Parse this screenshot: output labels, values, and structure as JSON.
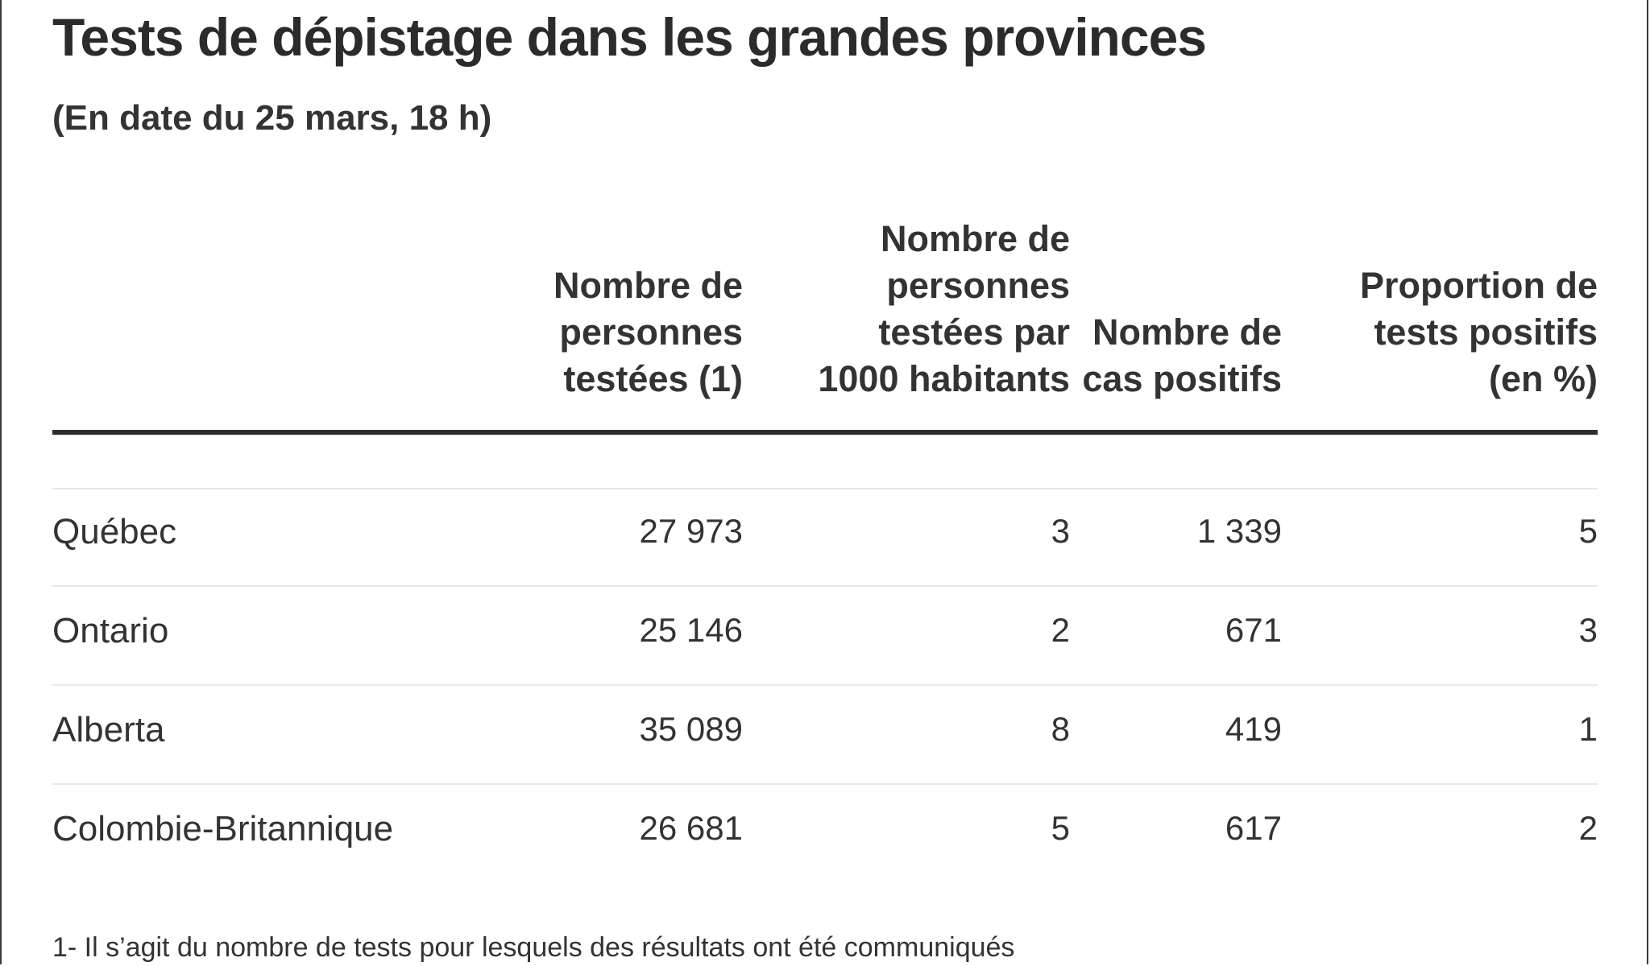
{
  "title": "Tests de dépistage dans les grandes provinces",
  "subtitle": "(En date du 25 mars, 18 h)",
  "columns": [
    {
      "lines": [
        "Nombre de",
        "personnes",
        "testées (1)"
      ]
    },
    {
      "lines": [
        "Nombre de",
        "personnes",
        "testées par",
        "1000 habitants"
      ]
    },
    {
      "lines": [
        "Nombre de",
        "cas positifs"
      ]
    },
    {
      "lines": [
        "Proportion de",
        "tests positifs",
        "(en %)"
      ]
    }
  ],
  "footnote": "1- Il s’agit du nombre de tests pour lesquels des résultats ont été communiqués",
  "chart_data": {
    "type": "table",
    "title": "Tests de dépistage dans les grandes provinces",
    "subtitle": "(En date du 25 mars, 18 h)",
    "headers": [
      "",
      "Nombre de personnes testées (1)",
      "Nombre de personnes testées par 1000 habitants",
      "Nombre de cas positifs",
      "Proportion de tests positifs (en %)"
    ],
    "rows": [
      {
        "province": "Québec",
        "tested": "27 973",
        "per_1000": "3",
        "positive": "1 339",
        "pct_positive": "5"
      },
      {
        "province": "Ontario",
        "tested": "25 146",
        "per_1000": "2",
        "positive": "671",
        "pct_positive": "3"
      },
      {
        "province": "Alberta",
        "tested": "35 089",
        "per_1000": "8",
        "positive": "419",
        "pct_positive": "1"
      },
      {
        "province": "Colombie-Britannique",
        "tested": "26 681",
        "per_1000": "5",
        "positive": "617",
        "pct_positive": "2"
      }
    ]
  }
}
